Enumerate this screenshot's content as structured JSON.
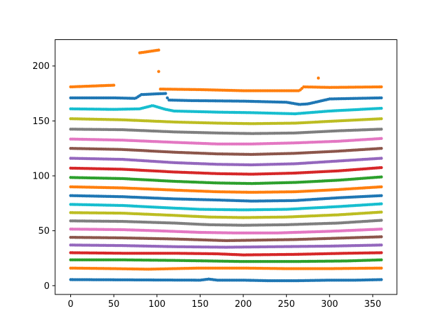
{
  "chart_data": {
    "type": "scatter",
    "title": "",
    "xlabel": "",
    "ylabel": "",
    "xlim": [
      -18,
      378
    ],
    "ylim": [
      -8,
      224
    ],
    "x_ticks": [
      0,
      50,
      100,
      150,
      200,
      250,
      300,
      350
    ],
    "x_tick_labels": [
      "0",
      "50",
      "100",
      "150",
      "200",
      "250",
      "300",
      "350"
    ],
    "y_ticks": [
      0,
      50,
      100,
      150,
      200
    ],
    "y_tick_labels": [
      "0",
      "50",
      "100",
      "150",
      "200"
    ],
    "grid": false,
    "legend": "none",
    "point_spacing": 2,
    "series": [
      {
        "color": "#1f77b4",
        "x": [
          0,
          150,
          160,
          170,
          200,
          230,
          260,
          300,
          330,
          360
        ],
        "y": [
          5.5,
          5,
          6,
          5,
          5,
          4.5,
          4.5,
          5,
          5,
          5.5
        ]
      },
      {
        "color": "#ff7f0e",
        "x": [
          0,
          50,
          90,
          150,
          200,
          250,
          300,
          360
        ],
        "y": [
          16,
          15.5,
          15,
          16,
          16,
          15.5,
          15.5,
          16
        ]
      },
      {
        "color": "#2ca02c",
        "x": [
          0,
          60,
          120,
          160,
          200,
          260,
          320,
          360
        ],
        "y": [
          23.5,
          23.5,
          23,
          22.5,
          22,
          22,
          22.5,
          23.5
        ]
      },
      {
        "color": "#d62728",
        "x": [
          0,
          60,
          120,
          170,
          200,
          260,
          320,
          360
        ],
        "y": [
          30,
          29.5,
          29.5,
          29,
          28,
          28.5,
          29.5,
          30
        ]
      },
      {
        "color": "#9467bd",
        "x": [
          0,
          60,
          120,
          180,
          240,
          300,
          360
        ],
        "y": [
          37,
          36.5,
          35.5,
          35,
          35.5,
          36,
          37
        ]
      },
      {
        "color": "#8c564b",
        "x": [
          0,
          60,
          120,
          180,
          220,
          260,
          300,
          360
        ],
        "y": [
          44,
          43.5,
          42.5,
          41,
          41.5,
          42,
          43,
          44.5
        ]
      },
      {
        "color": "#e377c2",
        "x": [
          0,
          60,
          100,
          150,
          190,
          240,
          300,
          360
        ],
        "y": [
          51.5,
          51,
          50,
          48.5,
          48,
          48,
          49.5,
          51.5
        ]
      },
      {
        "color": "#7f7f7f",
        "x": [
          0,
          60,
          120,
          160,
          200,
          250,
          310,
          360
        ],
        "y": [
          59,
          58.5,
          57,
          55.5,
          55,
          55.5,
          57,
          59.5
        ]
      },
      {
        "color": "#bcbd22",
        "x": [
          0,
          60,
          120,
          160,
          200,
          250,
          310,
          360
        ],
        "y": [
          66.5,
          66,
          64,
          62.5,
          62,
          62.5,
          64.5,
          67
        ]
      },
      {
        "color": "#17becf",
        "x": [
          0,
          60,
          110,
          150,
          200,
          250,
          310,
          360
        ],
        "y": [
          74,
          73,
          71,
          69.5,
          69,
          69.5,
          72,
          74.5
        ]
      },
      {
        "color": "#1f77b4",
        "x": [
          0,
          60,
          120,
          170,
          210,
          260,
          310,
          360
        ],
        "y": [
          82,
          81,
          79,
          78,
          77,
          77.5,
          80,
          82
        ]
      },
      {
        "color": "#ff7f0e",
        "x": [
          0,
          60,
          120,
          170,
          210,
          260,
          310,
          360
        ],
        "y": [
          90,
          89,
          87,
          85.5,
          85,
          85.5,
          87.5,
          90
        ]
      },
      {
        "color": "#2ca02c",
        "x": [
          0,
          60,
          120,
          170,
          210,
          260,
          310,
          360
        ],
        "y": [
          98.5,
          97.5,
          95,
          93.5,
          93,
          94,
          96,
          99
        ]
      },
      {
        "color": "#d62728",
        "x": [
          0,
          60,
          120,
          170,
          210,
          260,
          310,
          360
        ],
        "y": [
          107,
          106,
          103.5,
          102,
          101.5,
          102.5,
          104.5,
          107.5
        ]
      },
      {
        "color": "#9467bd",
        "x": [
          0,
          60,
          120,
          170,
          210,
          260,
          310,
          360
        ],
        "y": [
          116,
          115,
          112,
          110.5,
          110,
          111,
          113.5,
          116
        ]
      },
      {
        "color": "#8c564b",
        "x": [
          0,
          60,
          120,
          170,
          210,
          260,
          310,
          360
        ],
        "y": [
          125,
          124,
          121.5,
          120,
          119.5,
          120.5,
          122.5,
          125
        ]
      },
      {
        "color": "#e377c2",
        "x": [
          0,
          60,
          120,
          170,
          210,
          260,
          310,
          360
        ],
        "y": [
          133.5,
          132.5,
          130.5,
          129,
          129,
          130,
          131.5,
          134
        ]
      },
      {
        "color": "#7f7f7f",
        "x": [
          0,
          60,
          120,
          170,
          210,
          260,
          310,
          360
        ],
        "y": [
          142.5,
          142,
          140,
          139,
          138.5,
          139,
          141,
          142.5
        ]
      },
      {
        "color": "#bcbd22",
        "x": [
          0,
          60,
          120,
          170,
          210,
          260,
          310,
          360
        ],
        "y": [
          152,
          151,
          149,
          148,
          147.5,
          148,
          150,
          152
        ]
      },
      {
        "color": "#17becf",
        "x": [
          0,
          50,
          80,
          95,
          110,
          120,
          170,
          210,
          260,
          300,
          360
        ],
        "y": [
          161,
          160.5,
          161,
          164,
          160.5,
          159,
          158,
          157.5,
          156.5,
          159,
          161.5
        ]
      },
      {
        "color": "#1f77b4",
        "x": [
          0,
          50,
          75,
          82,
          110,
          113,
          140,
          200,
          250,
          265,
          275,
          300,
          360
        ],
        "y": [
          171,
          171,
          170.5,
          174,
          175,
          169,
          168.5,
          168,
          167,
          165,
          165.5,
          170,
          171
        ]
      },
      {
        "color": "#ff7f0e",
        "x": [
          0,
          50
        ],
        "y": [
          181,
          182.5
        ]
      },
      {
        "color": "#ff7f0e",
        "x": [
          80,
          102
        ],
        "y": [
          212,
          214.5
        ]
      },
      {
        "color": "#ff7f0e",
        "x": [
          104,
          150,
          200,
          265,
          270,
          300,
          360
        ],
        "y": [
          179,
          178.5,
          177.5,
          177.5,
          181,
          180.5,
          181
        ]
      },
      {
        "color": "#ff7f0e",
        "x": [
          102
        ],
        "y": [
          195
        ]
      },
      {
        "color": "#ff7f0e",
        "x": [
          287
        ],
        "y": [
          189
        ]
      }
    ]
  }
}
